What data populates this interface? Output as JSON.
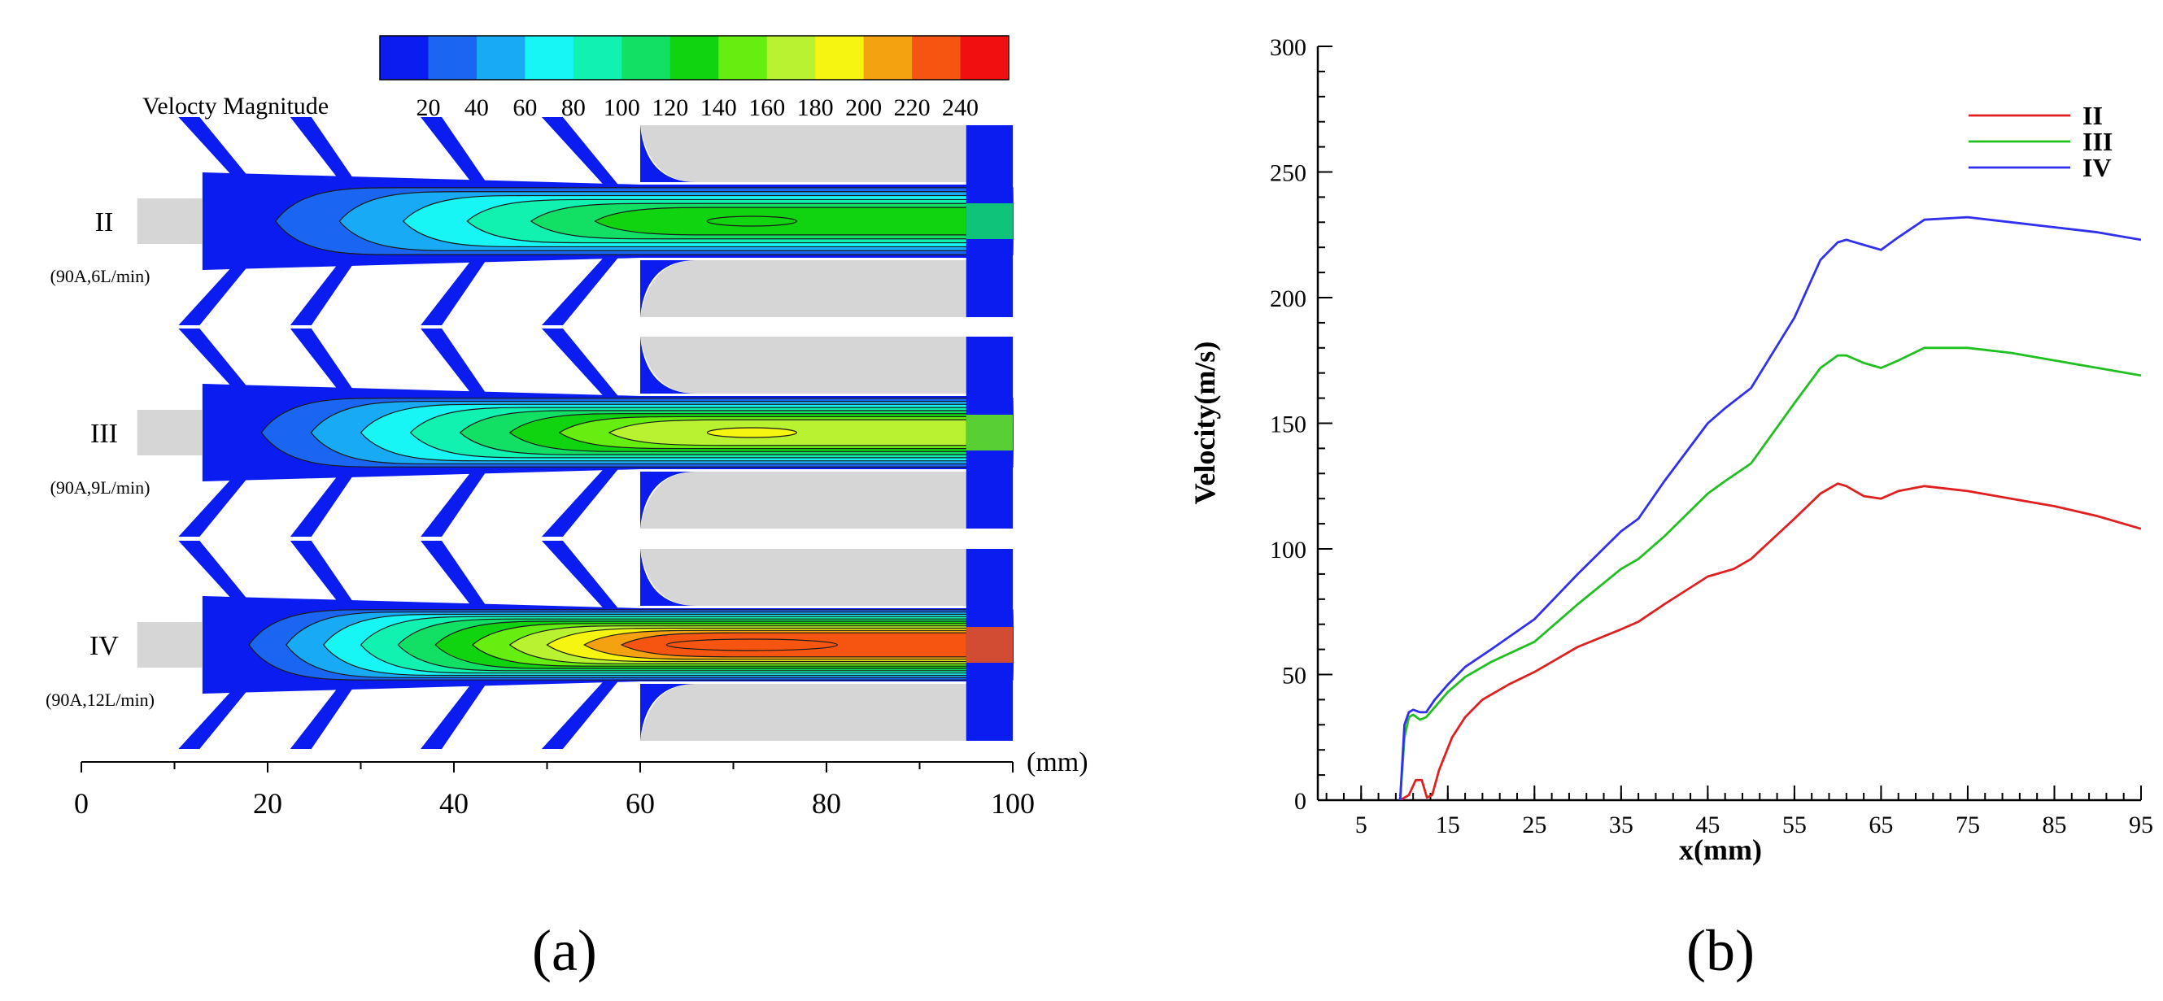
{
  "panel_a": {
    "label": "(a)",
    "colorbar": {
      "title": "Velocty Magnitude",
      "ticks": [
        "20",
        "40",
        "60",
        "80",
        "100",
        "120",
        "140",
        "160",
        "180",
        "200",
        "220",
        "240"
      ],
      "colors": [
        "#0a1cf0",
        "#1a66f2",
        "#19aaf5",
        "#17f5f5",
        "#11f2b0",
        "#11e065",
        "#11d411",
        "#66ee11",
        "#b8f230",
        "#f5f511",
        "#f5a211",
        "#f55511",
        "#f01010"
      ]
    },
    "cases": [
      {
        "name": "II",
        "condition": "(90A,6L/min)",
        "core_color": "#11e065",
        "peak_color": "#11d411"
      },
      {
        "name": "III",
        "condition": "(90A,9L/min)",
        "core_color": "#66ee11",
        "peak_color": "#f5f511"
      },
      {
        "name": "IV",
        "condition": "(90A,12L/min)",
        "core_color": "#f55511",
        "peak_color": "#f55511"
      }
    ],
    "axis": {
      "unit": "(mm)",
      "ticks": [
        "0",
        "20",
        "40",
        "60",
        "80",
        "100"
      ],
      "range": [
        0,
        100
      ]
    },
    "colors": {
      "electrode": "#0a1cf0",
      "solid": "#d6d6d6",
      "inlet": "#d6d6d6"
    }
  },
  "chart_data": {
    "type": "line",
    "label": "(b)",
    "xlabel": "x(mm)",
    "ylabel": "Velocity(m/s)",
    "xlim": [
      0,
      95
    ],
    "ylim": [
      0,
      300
    ],
    "xticks": [
      "5",
      "15",
      "25",
      "35",
      "45",
      "55",
      "65",
      "75",
      "85",
      "95"
    ],
    "yticks": [
      "0",
      "50",
      "100",
      "150",
      "200",
      "250",
      "300"
    ],
    "legend_position": "top-right",
    "series": [
      {
        "name": "II",
        "color": "#e02020",
        "x": [
          9.5,
          10.5,
          11.3,
          12.0,
          12.6,
          13.2,
          14,
          15.5,
          17,
          19,
          22,
          25,
          30,
          35,
          37,
          40,
          45,
          48,
          50,
          55,
          58,
          60,
          61,
          63,
          65,
          67,
          70,
          75,
          80,
          85,
          90,
          95
        ],
        "y": [
          0,
          2,
          8,
          8,
          1,
          2,
          12,
          25,
          33,
          40,
          46,
          51,
          61,
          68,
          71,
          78,
          89,
          92,
          96,
          112,
          122,
          126,
          125,
          121,
          120,
          123,
          125,
          123,
          120,
          117,
          113,
          108
        ]
      },
      {
        "name": "III",
        "color": "#20c020",
        "x": [
          9.5,
          10.0,
          10.5,
          11.0,
          11.8,
          12.5,
          13.5,
          15,
          17,
          20,
          25,
          30,
          35,
          37,
          40,
          45,
          47,
          50,
          55,
          58,
          60,
          61,
          63,
          65,
          67,
          70,
          75,
          80,
          85,
          90,
          95
        ],
        "y": [
          0,
          25,
          33,
          34,
          32,
          33,
          37,
          43,
          49,
          55,
          63,
          78,
          92,
          96,
          105,
          122,
          127,
          134,
          158,
          172,
          177,
          177,
          174,
          172,
          175,
          180,
          180,
          178,
          175,
          172,
          169
        ]
      },
      {
        "name": "IV",
        "color": "#3030ee",
        "x": [
          9.5,
          10.0,
          10.5,
          11.0,
          11.8,
          12.5,
          13.5,
          15,
          17,
          20,
          25,
          30,
          35,
          37,
          40,
          45,
          47,
          50,
          55,
          58,
          60,
          61,
          63,
          65,
          67,
          70,
          75,
          80,
          85,
          90,
          95
        ],
        "y": [
          0,
          30,
          35,
          36,
          35,
          35,
          40,
          46,
          53,
          60,
          72,
          90,
          107,
          112,
          127,
          150,
          156,
          164,
          192,
          215,
          222,
          223,
          221,
          219,
          224,
          231,
          232,
          230,
          228,
          226,
          223
        ]
      }
    ]
  }
}
